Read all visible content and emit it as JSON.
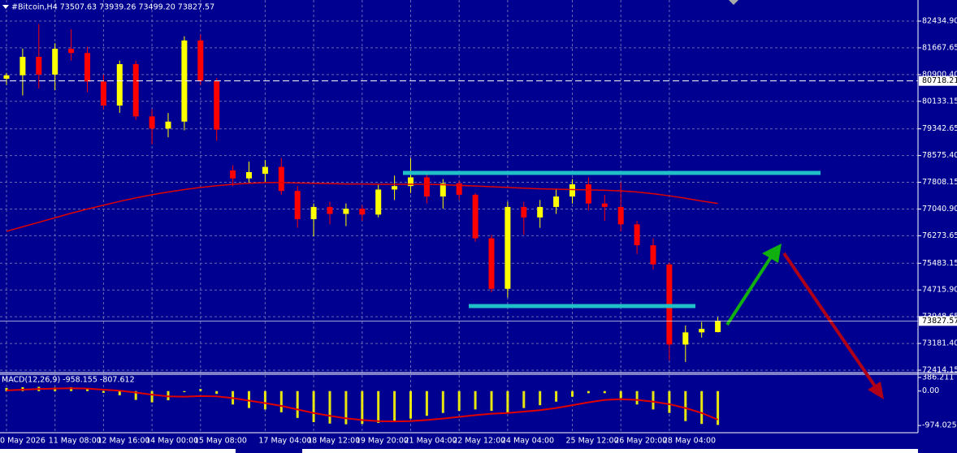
{
  "chart_data": [
    {
      "type": "candlestick",
      "title": "#Bitcoin,H4  73507.63 73939.26 73499.20 73827.57",
      "categories": [
        "0 May 2026",
        null,
        null,
        "11 May 08:00",
        null,
        null,
        "12 May 16:00",
        null,
        null,
        "14 May 00:00",
        null,
        null,
        "15 May 08:00",
        null,
        null,
        null,
        "17 May 04:00",
        null,
        null,
        "18 May 12:00",
        null,
        null,
        "19 May 20:00",
        null,
        null,
        "21 May 04:00",
        null,
        null,
        "22 May 12:00",
        null,
        null,
        "24 May 04:00",
        null,
        null,
        null,
        "25 May 12:00",
        null,
        null,
        "26 May 20:00",
        null,
        null,
        "28 May 04:00",
        null,
        null,
        null
      ],
      "open": [
        80780,
        80880,
        81410,
        80900,
        81640,
        81520,
        80700,
        80010,
        81200,
        79700,
        79350,
        79550,
        81880,
        80720,
        78150,
        77920,
        78050,
        78250,
        77560,
        76750,
        77100,
        76900,
        77050,
        76880,
        77600,
        77700,
        77950,
        77400,
        77780,
        77450,
        76200,
        74750,
        77100,
        76800,
        77100,
        77400,
        77750,
        77200,
        77100,
        76600,
        76000,
        75450,
        73150,
        73500,
        73507.63
      ],
      "high": [
        80950,
        81650,
        82350,
        81800,
        82200,
        81700,
        80900,
        81300,
        81300,
        79900,
        79800,
        82000,
        82050,
        80800,
        78300,
        78400,
        78450,
        78500,
        77700,
        77200,
        77250,
        77200,
        77150,
        77750,
        78000,
        78500,
        78100,
        77900,
        77850,
        77500,
        76300,
        77250,
        77250,
        77300,
        77600,
        77900,
        77950,
        77450,
        77800,
        76700,
        76200,
        75500,
        73700,
        73800,
        73939.26
      ],
      "low": [
        80600,
        80300,
        80500,
        80450,
        81300,
        80400,
        79900,
        79800,
        79600,
        78900,
        79100,
        79300,
        80600,
        79000,
        77700,
        77800,
        77800,
        77450,
        76500,
        76250,
        76600,
        76550,
        76700,
        76800,
        77300,
        77500,
        77200,
        77050,
        77300,
        76100,
        74650,
        74500,
        76300,
        76500,
        76900,
        77200,
        77000,
        76700,
        76400,
        75750,
        75300,
        72700,
        72650,
        73350,
        73499.2
      ],
      "close": [
        80880,
        81410,
        80900,
        81640,
        81520,
        80700,
        80010,
        81200,
        79700,
        79350,
        79550,
        81880,
        80720,
        79320,
        77920,
        78100,
        78250,
        77560,
        76750,
        77100,
        76900,
        77050,
        76880,
        77600,
        77700,
        77950,
        77400,
        77780,
        77450,
        76200,
        74750,
        77100,
        76800,
        77100,
        77400,
        77750,
        77200,
        77100,
        76600,
        76000,
        75450,
        73150,
        73500,
        73600,
        73827.57
      ],
      "up_color": "#ffff00",
      "down_color": "#ff0000",
      "ma": {
        "color": "#e00000",
        "values": [
          76400,
          76530,
          76660,
          76790,
          76920,
          77040,
          77150,
          77260,
          77360,
          77450,
          77530,
          77600,
          77660,
          77710,
          77750,
          77780,
          77800,
          77800,
          77790,
          77780,
          77770,
          77760,
          77760,
          77750,
          77750,
          77750,
          77750,
          77740,
          77720,
          77700,
          77680,
          77660,
          77640,
          77620,
          77610,
          77600,
          77590,
          77580,
          77560,
          77530,
          77480,
          77420,
          77350,
          77270,
          77200
        ]
      },
      "ylim": [
        72344,
        83041
      ],
      "yticks": [
        {
          "value": 82434.9,
          "label": "82434.90"
        },
        {
          "value": 81667.65,
          "label": "81667.65"
        },
        {
          "value": 80900.4,
          "label": "80900.40"
        },
        {
          "value": 80133.15,
          "label": "80133.15"
        },
        {
          "value": 79342.65,
          "label": "79342.65"
        },
        {
          "value": 78575.4,
          "label": "78575.40"
        },
        {
          "value": 77808.15,
          "label": "77808.15"
        },
        {
          "value": 77040.9,
          "label": "77040.90"
        },
        {
          "value": 76273.65,
          "label": "76273.65"
        },
        {
          "value": 75483.15,
          "label": "75483.15"
        },
        {
          "value": 74715.9,
          "label": "74715.90"
        },
        {
          "value": 73948.65,
          "label": "73948.65"
        },
        {
          "value": 73181.4,
          "label": "73181.40"
        },
        {
          "value": 72414.15,
          "label": "72414.15"
        }
      ],
      "grid": true,
      "price_line": 73827.57,
      "level_line": 80718.21
    },
    {
      "type": "macd",
      "title": "MACD(12,26,9) -958.155 -807.612",
      "histogram": {
        "color": "#ffff00",
        "values": [
          90,
          110,
          120,
          100,
          110,
          80,
          -50,
          -120,
          -250,
          -320,
          -260,
          -30,
          60,
          -80,
          -380,
          -480,
          -520,
          -600,
          -760,
          -880,
          -920,
          -940,
          -930,
          -900,
          -850,
          -780,
          -700,
          -620,
          -560,
          -520,
          -560,
          -620,
          -480,
          -400,
          -300,
          -160,
          -60,
          -60,
          -200,
          -380,
          -520,
          -620,
          -850,
          -930,
          -958.155
        ]
      },
      "signal": {
        "color": "#e00000",
        "values": [
          20,
          40,
          60,
          70,
          80,
          70,
          40,
          10,
          -40,
          -100,
          -150,
          -160,
          -140,
          -150,
          -200,
          -270,
          -340,
          -420,
          -520,
          -620,
          -700,
          -770,
          -820,
          -850,
          -860,
          -850,
          -820,
          -780,
          -730,
          -680,
          -640,
          -620,
          -580,
          -540,
          -480,
          -400,
          -320,
          -250,
          -230,
          -250,
          -300,
          -370,
          -480,
          -620,
          -807.612
        ]
      },
      "ylim": [
        -1178,
        476
      ],
      "yticks": [
        386.211,
        {
          "value": 0,
          "label": "0.00"
        },
        -974.025
      ]
    }
  ]
}
